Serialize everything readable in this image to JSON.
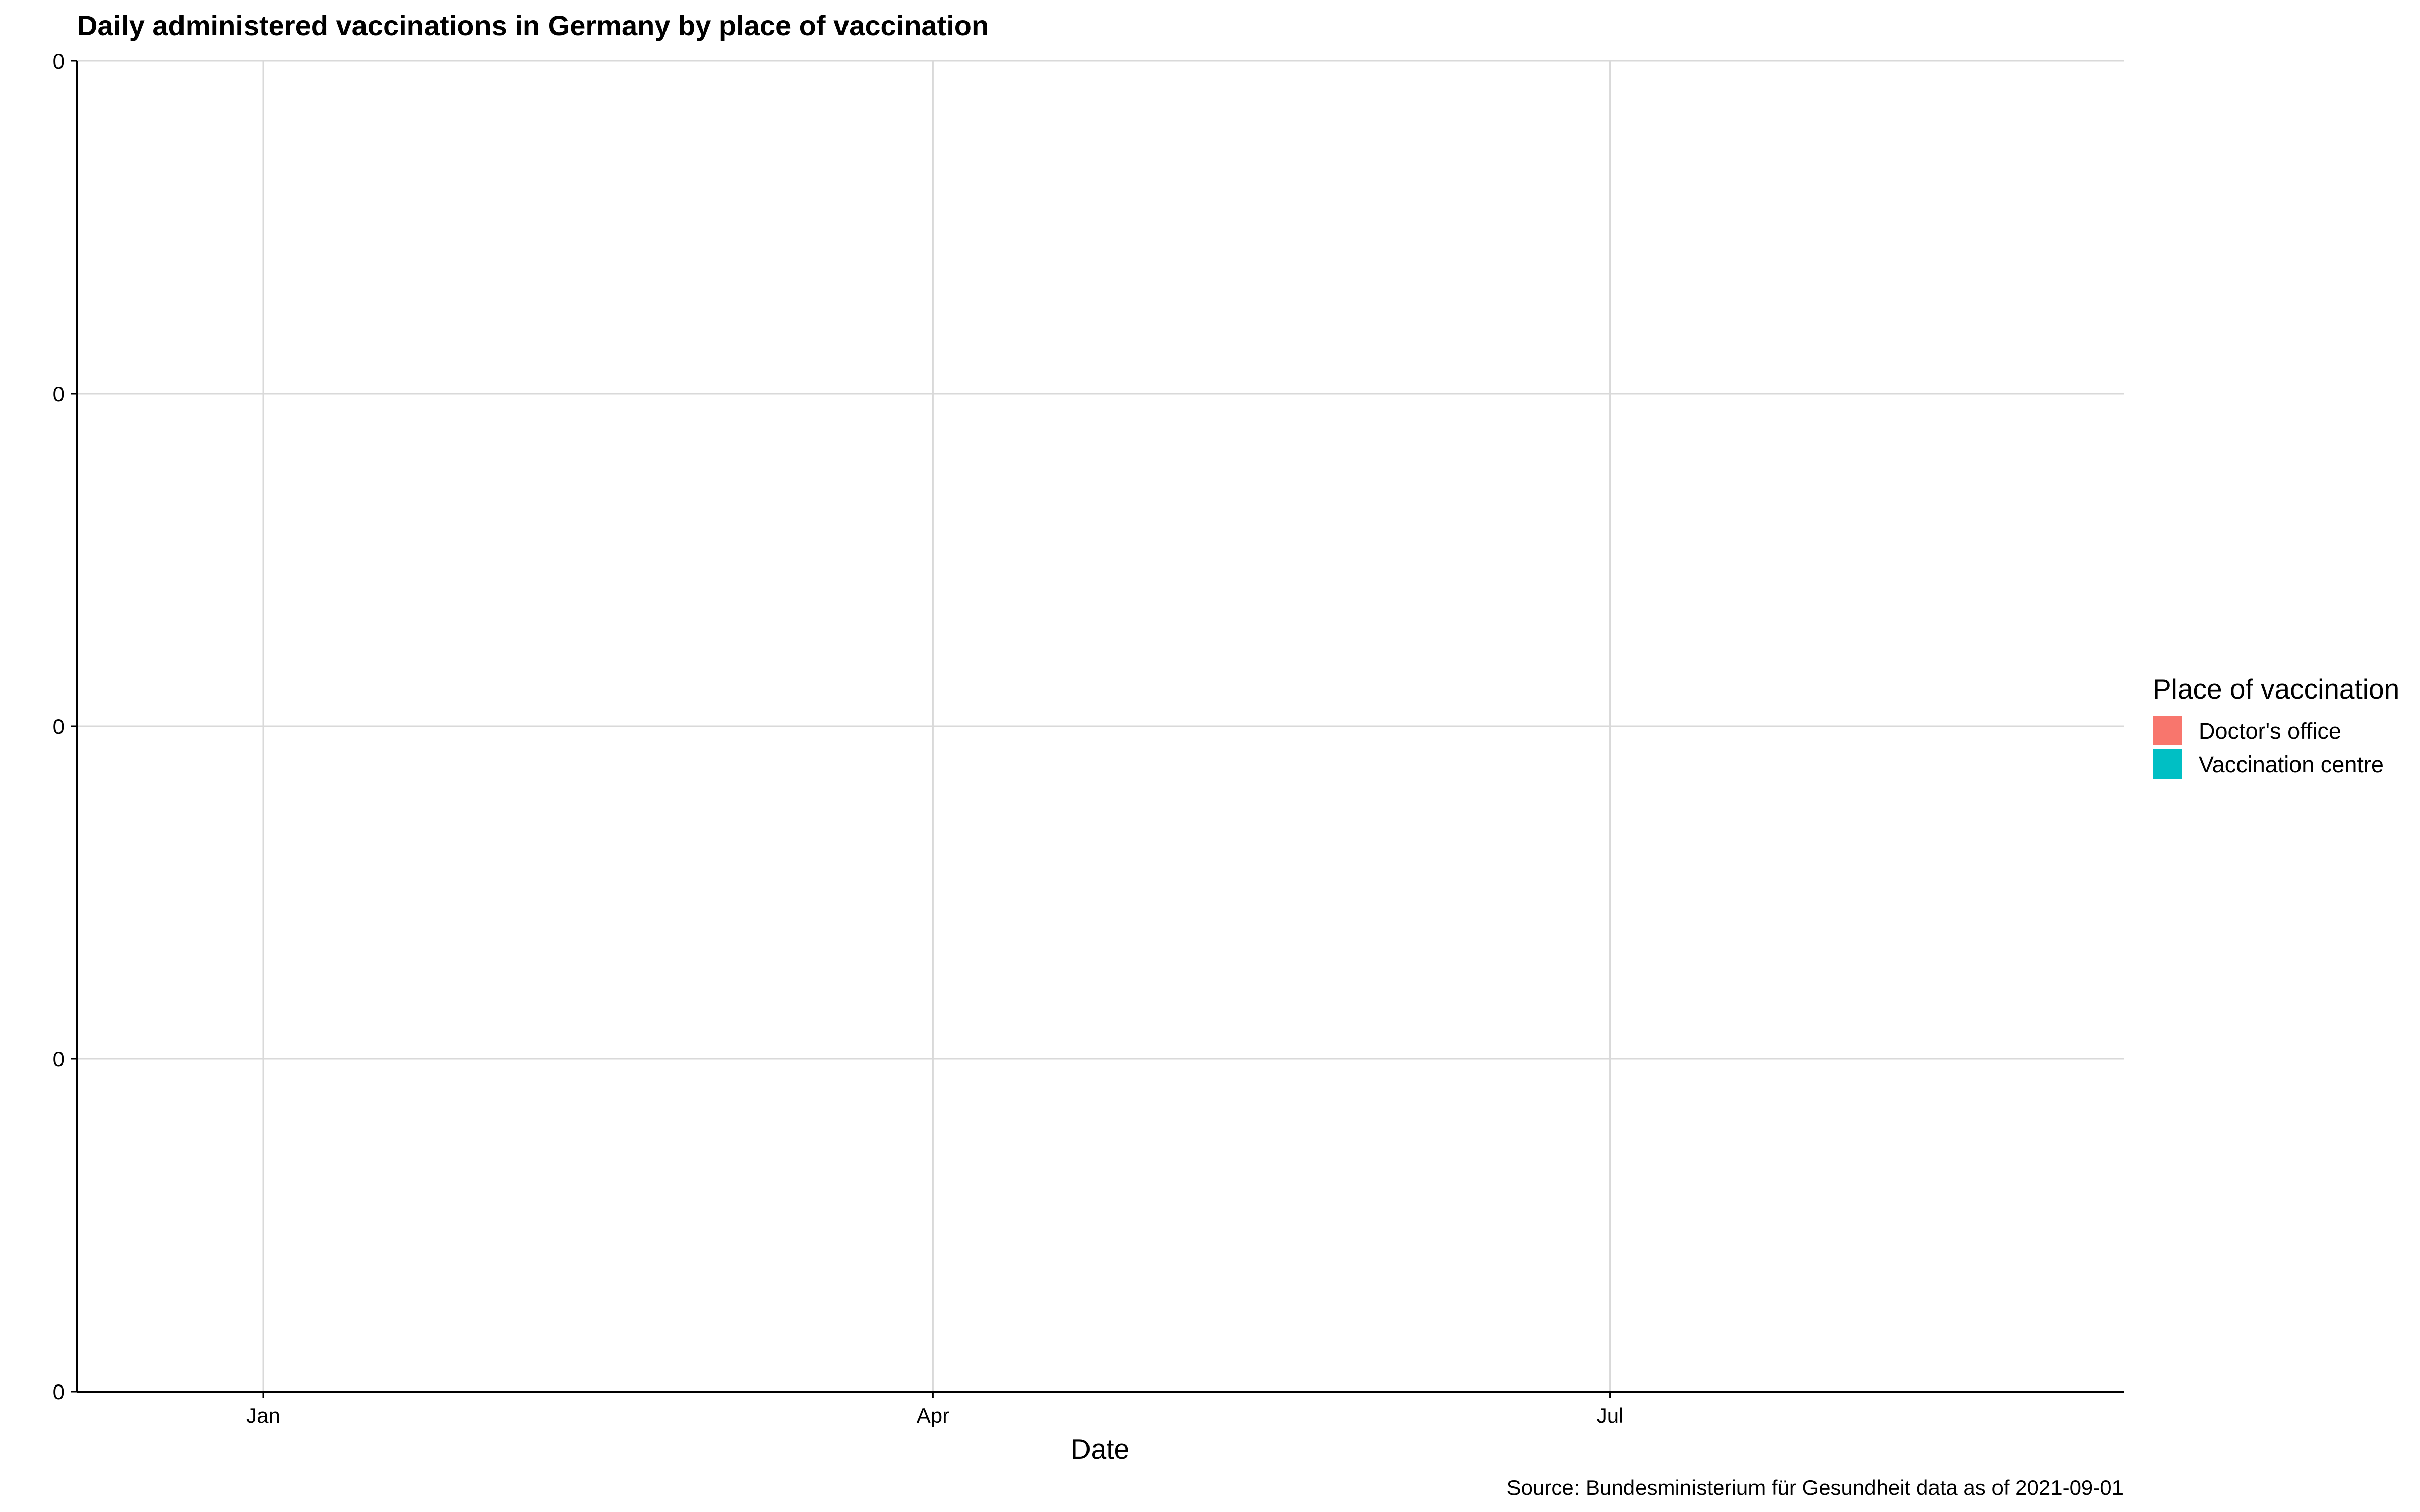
{
  "chart_data": {
    "type": "area",
    "title": "Daily administered vaccinations in Germany by place of vaccination",
    "xlabel": "Date",
    "ylabel": "",
    "caption": "Source: Bundesministerium für Gesundheit data as of 2021-09-01",
    "x_ticks": [
      {
        "label": "Jan",
        "date": "2021-01-01"
      },
      {
        "label": "Apr",
        "date": "2021-04-01"
      },
      {
        "label": "Jul",
        "date": "2021-07-01"
      }
    ],
    "xlim": [
      "2020-12-07",
      "2021-09-08"
    ],
    "y_ticks": [
      "0",
      "0",
      "0",
      "0",
      "0"
    ],
    "grid": true,
    "legend": {
      "title": "Place of vaccination",
      "position": "right",
      "entries": [
        {
          "label": "Doctor's office",
          "color": "#F8766D"
        },
        {
          "label": "Vaccination centre",
          "color": "#00BFC4"
        }
      ]
    },
    "series": [
      {
        "name": "Doctor's office",
        "color": "#F8766D",
        "values": []
      },
      {
        "name": "Vaccination centre",
        "color": "#00BFC4",
        "values": []
      }
    ]
  }
}
